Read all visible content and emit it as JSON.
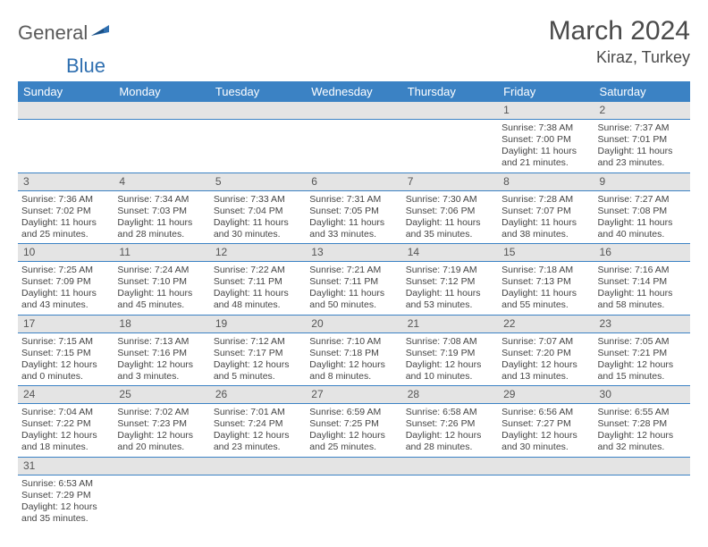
{
  "logo": {
    "part1": "General",
    "part2": "Blue"
  },
  "title": "March 2024",
  "location": "Kiraz, Turkey",
  "header_color": "#3b82c4",
  "daynum_bg": "#e4e4e4",
  "day_headers": [
    "Sunday",
    "Monday",
    "Tuesday",
    "Wednesday",
    "Thursday",
    "Friday",
    "Saturday"
  ],
  "weeks": [
    {
      "nums": [
        "",
        "",
        "",
        "",
        "",
        "1",
        "2"
      ],
      "cells": [
        "",
        "",
        "",
        "",
        "",
        "Sunrise: 7:38 AM\nSunset: 7:00 PM\nDaylight: 11 hours and 21 minutes.",
        "Sunrise: 7:37 AM\nSunset: 7:01 PM\nDaylight: 11 hours and 23 minutes."
      ]
    },
    {
      "nums": [
        "3",
        "4",
        "5",
        "6",
        "7",
        "8",
        "9"
      ],
      "cells": [
        "Sunrise: 7:36 AM\nSunset: 7:02 PM\nDaylight: 11 hours and 25 minutes.",
        "Sunrise: 7:34 AM\nSunset: 7:03 PM\nDaylight: 11 hours and 28 minutes.",
        "Sunrise: 7:33 AM\nSunset: 7:04 PM\nDaylight: 11 hours and 30 minutes.",
        "Sunrise: 7:31 AM\nSunset: 7:05 PM\nDaylight: 11 hours and 33 minutes.",
        "Sunrise: 7:30 AM\nSunset: 7:06 PM\nDaylight: 11 hours and 35 minutes.",
        "Sunrise: 7:28 AM\nSunset: 7:07 PM\nDaylight: 11 hours and 38 minutes.",
        "Sunrise: 7:27 AM\nSunset: 7:08 PM\nDaylight: 11 hours and 40 minutes."
      ]
    },
    {
      "nums": [
        "10",
        "11",
        "12",
        "13",
        "14",
        "15",
        "16"
      ],
      "cells": [
        "Sunrise: 7:25 AM\nSunset: 7:09 PM\nDaylight: 11 hours and 43 minutes.",
        "Sunrise: 7:24 AM\nSunset: 7:10 PM\nDaylight: 11 hours and 45 minutes.",
        "Sunrise: 7:22 AM\nSunset: 7:11 PM\nDaylight: 11 hours and 48 minutes.",
        "Sunrise: 7:21 AM\nSunset: 7:11 PM\nDaylight: 11 hours and 50 minutes.",
        "Sunrise: 7:19 AM\nSunset: 7:12 PM\nDaylight: 11 hours and 53 minutes.",
        "Sunrise: 7:18 AM\nSunset: 7:13 PM\nDaylight: 11 hours and 55 minutes.",
        "Sunrise: 7:16 AM\nSunset: 7:14 PM\nDaylight: 11 hours and 58 minutes."
      ]
    },
    {
      "nums": [
        "17",
        "18",
        "19",
        "20",
        "21",
        "22",
        "23"
      ],
      "cells": [
        "Sunrise: 7:15 AM\nSunset: 7:15 PM\nDaylight: 12 hours and 0 minutes.",
        "Sunrise: 7:13 AM\nSunset: 7:16 PM\nDaylight: 12 hours and 3 minutes.",
        "Sunrise: 7:12 AM\nSunset: 7:17 PM\nDaylight: 12 hours and 5 minutes.",
        "Sunrise: 7:10 AM\nSunset: 7:18 PM\nDaylight: 12 hours and 8 minutes.",
        "Sunrise: 7:08 AM\nSunset: 7:19 PM\nDaylight: 12 hours and 10 minutes.",
        "Sunrise: 7:07 AM\nSunset: 7:20 PM\nDaylight: 12 hours and 13 minutes.",
        "Sunrise: 7:05 AM\nSunset: 7:21 PM\nDaylight: 12 hours and 15 minutes."
      ]
    },
    {
      "nums": [
        "24",
        "25",
        "26",
        "27",
        "28",
        "29",
        "30"
      ],
      "cells": [
        "Sunrise: 7:04 AM\nSunset: 7:22 PM\nDaylight: 12 hours and 18 minutes.",
        "Sunrise: 7:02 AM\nSunset: 7:23 PM\nDaylight: 12 hours and 20 minutes.",
        "Sunrise: 7:01 AM\nSunset: 7:24 PM\nDaylight: 12 hours and 23 minutes.",
        "Sunrise: 6:59 AM\nSunset: 7:25 PM\nDaylight: 12 hours and 25 minutes.",
        "Sunrise: 6:58 AM\nSunset: 7:26 PM\nDaylight: 12 hours and 28 minutes.",
        "Sunrise: 6:56 AM\nSunset: 7:27 PM\nDaylight: 12 hours and 30 minutes.",
        "Sunrise: 6:55 AM\nSunset: 7:28 PM\nDaylight: 12 hours and 32 minutes."
      ]
    },
    {
      "nums": [
        "31",
        "",
        "",
        "",
        "",
        "",
        ""
      ],
      "cells": [
        "Sunrise: 6:53 AM\nSunset: 7:29 PM\nDaylight: 12 hours and 35 minutes.",
        "",
        "",
        "",
        "",
        "",
        ""
      ]
    }
  ]
}
